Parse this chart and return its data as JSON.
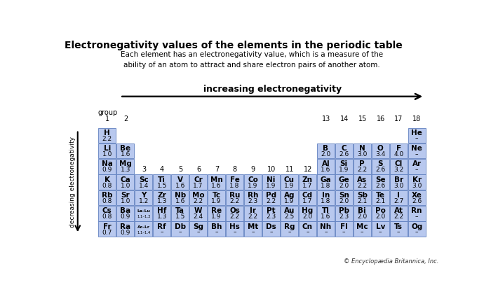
{
  "title": "Electronegativity values of the elements in the periodic table",
  "subtitle": "Each element has an electronegativity value, which is a measure of the\nability of an atom to attract and share electron pairs of another atom.",
  "increasing_label": "increasing electronegativity",
  "decreasing_label": "decreasing electronegativity",
  "group_label": "group",
  "copyright": "© Encyclopædia Britannica, Inc.",
  "bg_color": "#ffffff",
  "cell_color": "#b8c8ee",
  "border_color": "#6080c0",
  "elements": [
    {
      "symbol": "H",
      "value": "2.2",
      "row": 1,
      "col": 1
    },
    {
      "symbol": "He",
      "value": "–",
      "row": 1,
      "col": 18
    },
    {
      "symbol": "Li",
      "value": "1.0",
      "row": 2,
      "col": 1
    },
    {
      "symbol": "Be",
      "value": "1.6",
      "row": 2,
      "col": 2
    },
    {
      "symbol": "B",
      "value": "2.0",
      "row": 2,
      "col": 13
    },
    {
      "symbol": "C",
      "value": "2.6",
      "row": 2,
      "col": 14
    },
    {
      "symbol": "N",
      "value": "3.0",
      "row": 2,
      "col": 15
    },
    {
      "symbol": "O",
      "value": "3.4",
      "row": 2,
      "col": 16
    },
    {
      "symbol": "F",
      "value": "4.0",
      "row": 2,
      "col": 17
    },
    {
      "symbol": "Ne",
      "value": "–",
      "row": 2,
      "col": 18
    },
    {
      "symbol": "Na",
      "value": "0.9",
      "row": 3,
      "col": 1
    },
    {
      "symbol": "Mg",
      "value": "1.3",
      "row": 3,
      "col": 2
    },
    {
      "symbol": "Al",
      "value": "1.6",
      "row": 3,
      "col": 13
    },
    {
      "symbol": "Si",
      "value": "1.9",
      "row": 3,
      "col": 14
    },
    {
      "symbol": "P",
      "value": "2.2",
      "row": 3,
      "col": 15
    },
    {
      "symbol": "S",
      "value": "2.6",
      "row": 3,
      "col": 16
    },
    {
      "symbol": "Cl",
      "value": "3.2",
      "row": 3,
      "col": 17
    },
    {
      "symbol": "Ar",
      "value": "–",
      "row": 3,
      "col": 18
    },
    {
      "symbol": "K",
      "value": "0.8",
      "row": 4,
      "col": 1
    },
    {
      "symbol": "Ca",
      "value": "1.0",
      "row": 4,
      "col": 2
    },
    {
      "symbol": "Sc",
      "value": "1.4",
      "row": 4,
      "col": 3
    },
    {
      "symbol": "Ti",
      "value": "1.5",
      "row": 4,
      "col": 4
    },
    {
      "symbol": "V",
      "value": "1.6",
      "row": 4,
      "col": 5
    },
    {
      "symbol": "Cr",
      "value": "1.7",
      "row": 4,
      "col": 6
    },
    {
      "symbol": "Mn",
      "value": "1.6",
      "row": 4,
      "col": 7
    },
    {
      "symbol": "Fe",
      "value": "1.8",
      "row": 4,
      "col": 8
    },
    {
      "symbol": "Co",
      "value": "1.9",
      "row": 4,
      "col": 9
    },
    {
      "symbol": "Ni",
      "value": "1.9",
      "row": 4,
      "col": 10
    },
    {
      "symbol": "Cu",
      "value": "1.9",
      "row": 4,
      "col": 11
    },
    {
      "symbol": "Zn",
      "value": "1.7",
      "row": 4,
      "col": 12
    },
    {
      "symbol": "Ga",
      "value": "1.8",
      "row": 4,
      "col": 13
    },
    {
      "symbol": "Ge",
      "value": "2.0",
      "row": 4,
      "col": 14
    },
    {
      "symbol": "As",
      "value": "2.2",
      "row": 4,
      "col": 15
    },
    {
      "symbol": "Se",
      "value": "2.6",
      "row": 4,
      "col": 16
    },
    {
      "symbol": "Br",
      "value": "3.0",
      "row": 4,
      "col": 17
    },
    {
      "symbol": "Kr",
      "value": "3.0",
      "row": 4,
      "col": 18
    },
    {
      "symbol": "Rb",
      "value": "0.8",
      "row": 5,
      "col": 1
    },
    {
      "symbol": "Sr",
      "value": "1.0",
      "row": 5,
      "col": 2
    },
    {
      "symbol": "Y",
      "value": "1.2",
      "row": 5,
      "col": 3
    },
    {
      "symbol": "Zr",
      "value": "1.3",
      "row": 5,
      "col": 4
    },
    {
      "symbol": "Nb",
      "value": "1.6",
      "row": 5,
      "col": 5
    },
    {
      "symbol": "Mo",
      "value": "2.2",
      "row": 5,
      "col": 6
    },
    {
      "symbol": "Tc",
      "value": "1.9",
      "row": 5,
      "col": 7
    },
    {
      "symbol": "Ru",
      "value": "2.2",
      "row": 5,
      "col": 8
    },
    {
      "symbol": "Rh",
      "value": "2.3",
      "row": 5,
      "col": 9
    },
    {
      "symbol": "Pd",
      "value": "2.2",
      "row": 5,
      "col": 10
    },
    {
      "symbol": "Ag",
      "value": "1.9",
      "row": 5,
      "col": 11
    },
    {
      "symbol": "Cd",
      "value": "1.7",
      "row": 5,
      "col": 12
    },
    {
      "symbol": "In",
      "value": "1.8",
      "row": 5,
      "col": 13
    },
    {
      "symbol": "Sn",
      "value": "2.0",
      "row": 5,
      "col": 14
    },
    {
      "symbol": "Sb",
      "value": "2.1",
      "row": 5,
      "col": 15
    },
    {
      "symbol": "Te",
      "value": "2.1",
      "row": 5,
      "col": 16
    },
    {
      "symbol": "I",
      "value": "2.7",
      "row": 5,
      "col": 17
    },
    {
      "symbol": "Xe",
      "value": "2.6",
      "row": 5,
      "col": 18
    },
    {
      "symbol": "Cs",
      "value": "0.8",
      "row": 6,
      "col": 1
    },
    {
      "symbol": "Ba",
      "value": "0.9",
      "row": 6,
      "col": 2
    },
    {
      "symbol": "La–Lu",
      "value": "1.1–1.3",
      "row": 6,
      "col": 3,
      "small": true
    },
    {
      "symbol": "Hf",
      "value": "1.3",
      "row": 6,
      "col": 4
    },
    {
      "symbol": "Ta",
      "value": "1.5",
      "row": 6,
      "col": 5
    },
    {
      "symbol": "W",
      "value": "2.4",
      "row": 6,
      "col": 6
    },
    {
      "symbol": "Re",
      "value": "1.9",
      "row": 6,
      "col": 7
    },
    {
      "symbol": "Os",
      "value": "2.2",
      "row": 6,
      "col": 8
    },
    {
      "symbol": "Ir",
      "value": "2.2",
      "row": 6,
      "col": 9
    },
    {
      "symbol": "Pt",
      "value": "2.3",
      "row": 6,
      "col": 10
    },
    {
      "symbol": "Au",
      "value": "2.5",
      "row": 6,
      "col": 11
    },
    {
      "symbol": "Hg",
      "value": "2.0",
      "row": 6,
      "col": 12
    },
    {
      "symbol": "Tl",
      "value": "1.6",
      "row": 6,
      "col": 13
    },
    {
      "symbol": "Pb",
      "value": "2.3",
      "row": 6,
      "col": 14
    },
    {
      "symbol": "Bi",
      "value": "2.0",
      "row": 6,
      "col": 15
    },
    {
      "symbol": "Po",
      "value": "2.0",
      "row": 6,
      "col": 16
    },
    {
      "symbol": "At",
      "value": "2.2",
      "row": 6,
      "col": 17
    },
    {
      "symbol": "Rn",
      "value": "–",
      "row": 6,
      "col": 18
    },
    {
      "symbol": "Fr",
      "value": "0.7",
      "row": 7,
      "col": 1
    },
    {
      "symbol": "Ra",
      "value": "0.9",
      "row": 7,
      "col": 2
    },
    {
      "symbol": "Ac–Lr",
      "value": "1.1–1.4",
      "row": 7,
      "col": 3,
      "small": true
    },
    {
      "symbol": "Rf",
      "value": "–",
      "row": 7,
      "col": 4
    },
    {
      "symbol": "Db",
      "value": "–",
      "row": 7,
      "col": 5
    },
    {
      "symbol": "Sg",
      "value": "–",
      "row": 7,
      "col": 6
    },
    {
      "symbol": "Bh",
      "value": "–",
      "row": 7,
      "col": 7
    },
    {
      "symbol": "Hs",
      "value": "–",
      "row": 7,
      "col": 8
    },
    {
      "symbol": "Mt",
      "value": "–",
      "row": 7,
      "col": 9
    },
    {
      "symbol": "Ds",
      "value": "–",
      "row": 7,
      "col": 10
    },
    {
      "symbol": "Rg",
      "value": "–",
      "row": 7,
      "col": 11
    },
    {
      "symbol": "Cn",
      "value": "–",
      "row": 7,
      "col": 12
    },
    {
      "symbol": "Nh",
      "value": "–",
      "row": 7,
      "col": 13
    },
    {
      "symbol": "Fl",
      "value": "–",
      "row": 7,
      "col": 14
    },
    {
      "symbol": "Mc",
      "value": "–",
      "row": 7,
      "col": 15
    },
    {
      "symbol": "Lv",
      "value": "–",
      "row": 7,
      "col": 16
    },
    {
      "symbol": "Ts",
      "value": "–",
      "row": 7,
      "col": 17
    },
    {
      "symbol": "Og",
      "value": "–",
      "row": 7,
      "col": 18
    }
  ]
}
